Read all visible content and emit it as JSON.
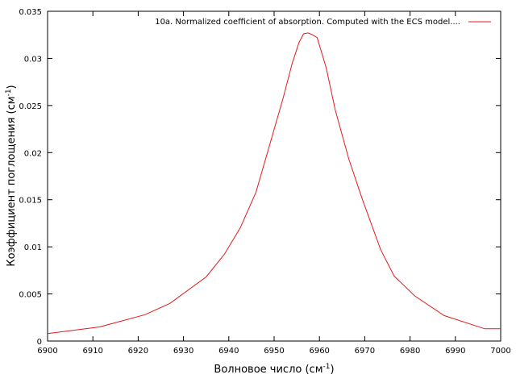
{
  "chart_data": {
    "type": "line",
    "title": "",
    "xlabel": "Волновое число (см",
    "xlabel_sup": "-1",
    "xlabel_tail": ")",
    "ylabel": "Коэффициент поглощения (см",
    "ylabel_sup": "-1",
    "ylabel_tail": ")",
    "xlim": [
      6900,
      7000
    ],
    "ylim": [
      0,
      0.035
    ],
    "xticks": [
      6900,
      6910,
      6920,
      6930,
      6940,
      6950,
      6960,
      6970,
      6980,
      6990,
      7000
    ],
    "yticks": [
      0,
      0.005,
      0.01,
      0.015,
      0.02,
      0.025,
      0.03,
      0.035
    ],
    "xtick_labels": [
      "6900",
      "6910",
      "6920",
      "6930",
      "6940",
      "6950",
      "6960",
      "6970",
      "6980",
      "6990",
      "7000"
    ],
    "ytick_labels": [
      "0",
      "0.005",
      "0.01",
      "0.015",
      "0.02",
      "0.025",
      "0.03",
      "0.035"
    ],
    "grid": false,
    "legend_position": "top-right",
    "series": [
      {
        "name": "10a. Normalized coefficient of absorption. Computed with the ECS model....",
        "color": "#e31a1c",
        "x": [
          6900,
          6911.5,
          6921.5,
          6927,
          6935,
          6939,
          6942.5,
          6946,
          6949,
          6952,
          6954,
          6955.5,
          6956.5,
          6957.5,
          6958.5,
          6959.5,
          6961.5,
          6963.5,
          6966.5,
          6969.5,
          6973.5,
          6976.5,
          6981,
          6987.5,
          6996.5,
          7000
        ],
        "y": [
          0.0008,
          0.0015,
          0.0028,
          0.004,
          0.0068,
          0.0092,
          0.012,
          0.0158,
          0.0208,
          0.0258,
          0.0295,
          0.0317,
          0.0326,
          0.0327,
          0.0325,
          0.0322,
          0.029,
          0.0245,
          0.0193,
          0.015,
          0.0097,
          0.0069,
          0.0048,
          0.0027,
          0.0013,
          0.0013
        ]
      }
    ]
  }
}
